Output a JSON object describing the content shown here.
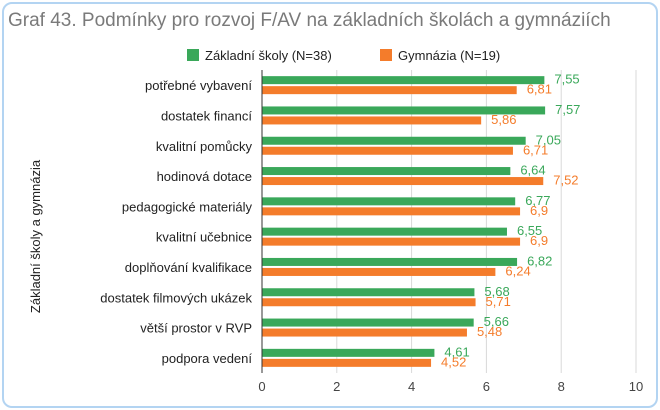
{
  "chart_data": {
    "type": "bar",
    "orientation": "horizontal",
    "title": "Graf 43. Podmínky pro rozvoj F/AV na základních školách a gymnáziích",
    "ylabel": "Základní školy a gymnázia",
    "xlabel": "",
    "xlim": [
      0,
      10
    ],
    "xticks": [
      "0",
      "2",
      "4",
      "6",
      "8",
      "10"
    ],
    "grid": true,
    "legend": "top-center",
    "categories": [
      "potřebné vybavení",
      "dostatek financí",
      "kvalitní pomůcky",
      "hodinová dotace",
      "pedagogické materiály",
      "kvalitní učebnice",
      "doplňování kvalifikace",
      "dostatek filmových ukázek",
      "větší prostor v RVP",
      "podpora vedení"
    ],
    "series": [
      {
        "name": "Základní školy (N=38)",
        "color": "#3aa85a",
        "values": [
          7.55,
          7.57,
          7.05,
          6.64,
          6.77,
          6.55,
          6.82,
          5.68,
          5.66,
          4.61
        ],
        "labels": [
          "7,55",
          "7,57",
          "7,05",
          "6,64",
          "6,77",
          "6,55",
          "6,82",
          "5,68",
          "5,66",
          "4,61"
        ]
      },
      {
        "name": "Gymnázia (N=19)",
        "color": "#f47c2b",
        "values": [
          6.81,
          5.86,
          6.71,
          7.52,
          6.9,
          6.9,
          6.24,
          5.71,
          5.48,
          4.52
        ],
        "labels": [
          "6,81",
          "5,86",
          "6,71",
          "7,52",
          "6,9",
          "6,9",
          "6,24",
          "5,71",
          "5,48",
          "4,52"
        ]
      }
    ]
  }
}
